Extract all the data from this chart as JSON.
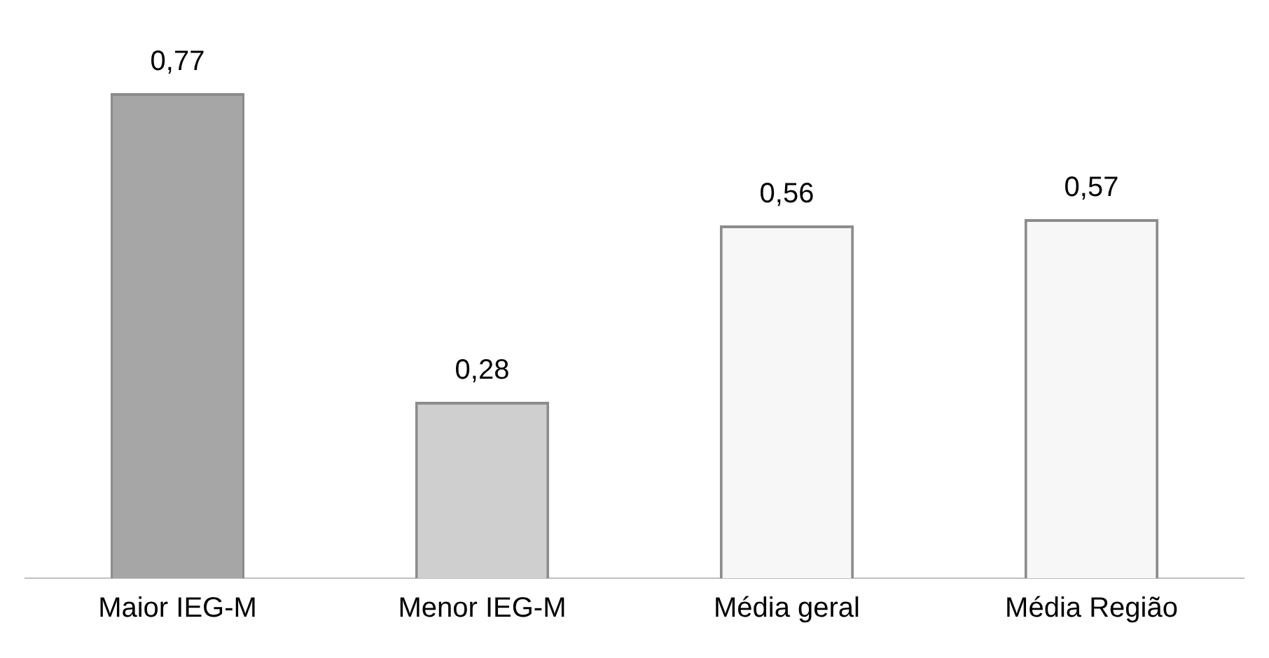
{
  "chart_data": {
    "type": "bar",
    "categories": [
      "Maior IEG-M",
      "Menor IEG-M",
      "Média geral",
      "Média Região"
    ],
    "values": [
      0.77,
      0.28,
      0.56,
      0.57
    ],
    "value_labels": [
      "0,77",
      "0,28",
      "0,56",
      "0,57"
    ],
    "colors": [
      "#a6a6a6",
      "#cfcfcf",
      "#f7f7f7",
      "#f7f7f7"
    ],
    "grid": false,
    "legend": false
  }
}
